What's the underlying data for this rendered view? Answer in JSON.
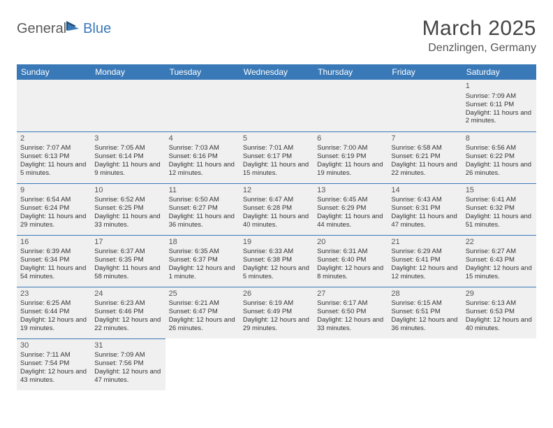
{
  "logo": {
    "part1": "General",
    "part2": "Blue"
  },
  "title": "March 2025",
  "location": "Denzlingen, Germany",
  "colors": {
    "header_bg": "#3a79b7",
    "header_text": "#ffffff",
    "cell_bg": "#f0f0f0",
    "border": "#3a79b7",
    "logo_gray": "#5a5a5a",
    "logo_blue": "#3a79b7"
  },
  "day_headers": [
    "Sunday",
    "Monday",
    "Tuesday",
    "Wednesday",
    "Thursday",
    "Friday",
    "Saturday"
  ],
  "weeks": [
    [
      {
        "empty": true
      },
      {
        "empty": true
      },
      {
        "empty": true
      },
      {
        "empty": true
      },
      {
        "empty": true
      },
      {
        "empty": true
      },
      {
        "day": "1",
        "sunrise": "Sunrise: 7:09 AM",
        "sunset": "Sunset: 6:11 PM",
        "daylight": "Daylight: 11 hours and 2 minutes."
      }
    ],
    [
      {
        "day": "2",
        "sunrise": "Sunrise: 7:07 AM",
        "sunset": "Sunset: 6:13 PM",
        "daylight": "Daylight: 11 hours and 5 minutes."
      },
      {
        "day": "3",
        "sunrise": "Sunrise: 7:05 AM",
        "sunset": "Sunset: 6:14 PM",
        "daylight": "Daylight: 11 hours and 9 minutes."
      },
      {
        "day": "4",
        "sunrise": "Sunrise: 7:03 AM",
        "sunset": "Sunset: 6:16 PM",
        "daylight": "Daylight: 11 hours and 12 minutes."
      },
      {
        "day": "5",
        "sunrise": "Sunrise: 7:01 AM",
        "sunset": "Sunset: 6:17 PM",
        "daylight": "Daylight: 11 hours and 15 minutes."
      },
      {
        "day": "6",
        "sunrise": "Sunrise: 7:00 AM",
        "sunset": "Sunset: 6:19 PM",
        "daylight": "Daylight: 11 hours and 19 minutes."
      },
      {
        "day": "7",
        "sunrise": "Sunrise: 6:58 AM",
        "sunset": "Sunset: 6:21 PM",
        "daylight": "Daylight: 11 hours and 22 minutes."
      },
      {
        "day": "8",
        "sunrise": "Sunrise: 6:56 AM",
        "sunset": "Sunset: 6:22 PM",
        "daylight": "Daylight: 11 hours and 26 minutes."
      }
    ],
    [
      {
        "day": "9",
        "sunrise": "Sunrise: 6:54 AM",
        "sunset": "Sunset: 6:24 PM",
        "daylight": "Daylight: 11 hours and 29 minutes."
      },
      {
        "day": "10",
        "sunrise": "Sunrise: 6:52 AM",
        "sunset": "Sunset: 6:25 PM",
        "daylight": "Daylight: 11 hours and 33 minutes."
      },
      {
        "day": "11",
        "sunrise": "Sunrise: 6:50 AM",
        "sunset": "Sunset: 6:27 PM",
        "daylight": "Daylight: 11 hours and 36 minutes."
      },
      {
        "day": "12",
        "sunrise": "Sunrise: 6:47 AM",
        "sunset": "Sunset: 6:28 PM",
        "daylight": "Daylight: 11 hours and 40 minutes."
      },
      {
        "day": "13",
        "sunrise": "Sunrise: 6:45 AM",
        "sunset": "Sunset: 6:29 PM",
        "daylight": "Daylight: 11 hours and 44 minutes."
      },
      {
        "day": "14",
        "sunrise": "Sunrise: 6:43 AM",
        "sunset": "Sunset: 6:31 PM",
        "daylight": "Daylight: 11 hours and 47 minutes."
      },
      {
        "day": "15",
        "sunrise": "Sunrise: 6:41 AM",
        "sunset": "Sunset: 6:32 PM",
        "daylight": "Daylight: 11 hours and 51 minutes."
      }
    ],
    [
      {
        "day": "16",
        "sunrise": "Sunrise: 6:39 AM",
        "sunset": "Sunset: 6:34 PM",
        "daylight": "Daylight: 11 hours and 54 minutes."
      },
      {
        "day": "17",
        "sunrise": "Sunrise: 6:37 AM",
        "sunset": "Sunset: 6:35 PM",
        "daylight": "Daylight: 11 hours and 58 minutes."
      },
      {
        "day": "18",
        "sunrise": "Sunrise: 6:35 AM",
        "sunset": "Sunset: 6:37 PM",
        "daylight": "Daylight: 12 hours and 1 minute."
      },
      {
        "day": "19",
        "sunrise": "Sunrise: 6:33 AM",
        "sunset": "Sunset: 6:38 PM",
        "daylight": "Daylight: 12 hours and 5 minutes."
      },
      {
        "day": "20",
        "sunrise": "Sunrise: 6:31 AM",
        "sunset": "Sunset: 6:40 PM",
        "daylight": "Daylight: 12 hours and 8 minutes."
      },
      {
        "day": "21",
        "sunrise": "Sunrise: 6:29 AM",
        "sunset": "Sunset: 6:41 PM",
        "daylight": "Daylight: 12 hours and 12 minutes."
      },
      {
        "day": "22",
        "sunrise": "Sunrise: 6:27 AM",
        "sunset": "Sunset: 6:43 PM",
        "daylight": "Daylight: 12 hours and 15 minutes."
      }
    ],
    [
      {
        "day": "23",
        "sunrise": "Sunrise: 6:25 AM",
        "sunset": "Sunset: 6:44 PM",
        "daylight": "Daylight: 12 hours and 19 minutes."
      },
      {
        "day": "24",
        "sunrise": "Sunrise: 6:23 AM",
        "sunset": "Sunset: 6:46 PM",
        "daylight": "Daylight: 12 hours and 22 minutes."
      },
      {
        "day": "25",
        "sunrise": "Sunrise: 6:21 AM",
        "sunset": "Sunset: 6:47 PM",
        "daylight": "Daylight: 12 hours and 26 minutes."
      },
      {
        "day": "26",
        "sunrise": "Sunrise: 6:19 AM",
        "sunset": "Sunset: 6:49 PM",
        "daylight": "Daylight: 12 hours and 29 minutes."
      },
      {
        "day": "27",
        "sunrise": "Sunrise: 6:17 AM",
        "sunset": "Sunset: 6:50 PM",
        "daylight": "Daylight: 12 hours and 33 minutes."
      },
      {
        "day": "28",
        "sunrise": "Sunrise: 6:15 AM",
        "sunset": "Sunset: 6:51 PM",
        "daylight": "Daylight: 12 hours and 36 minutes."
      },
      {
        "day": "29",
        "sunrise": "Sunrise: 6:13 AM",
        "sunset": "Sunset: 6:53 PM",
        "daylight": "Daylight: 12 hours and 40 minutes."
      }
    ],
    [
      {
        "day": "30",
        "sunrise": "Sunrise: 7:11 AM",
        "sunset": "Sunset: 7:54 PM",
        "daylight": "Daylight: 12 hours and 43 minutes."
      },
      {
        "day": "31",
        "sunrise": "Sunrise: 7:09 AM",
        "sunset": "Sunset: 7:56 PM",
        "daylight": "Daylight: 12 hours and 47 minutes."
      },
      {
        "empty": true
      },
      {
        "empty": true
      },
      {
        "empty": true
      },
      {
        "empty": true
      },
      {
        "empty": true
      }
    ]
  ]
}
